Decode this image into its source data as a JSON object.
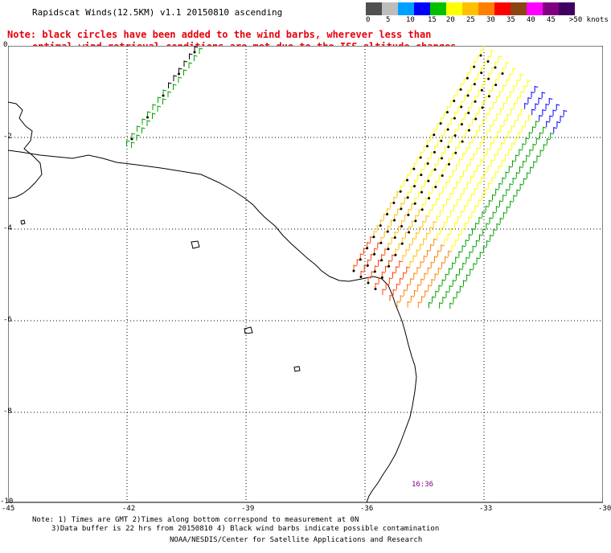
{
  "header": {
    "title": "Rapidscat Winds(12.5KM) v1.1 20150810 ascending",
    "note_line1": "Note: black circles have been added to the wind barbs, wherever less than",
    "note_line2": "optimal wind retrieval conditions are met due to the ISS altitude changes."
  },
  "legend": {
    "labels": [
      "0",
      "5",
      "10",
      "15",
      "20",
      "25",
      "30",
      "35",
      "40",
      "45",
      ">50 knots"
    ],
    "colors": [
      "#505050",
      "#bdbdbd",
      "#00a0ff",
      "#0000ff",
      "#00c000",
      "#ffff00",
      "#ffc000",
      "#ff8000",
      "#ff0000",
      "#8b4513",
      "#ff00ff",
      "#800080",
      "#400060"
    ]
  },
  "map": {
    "x_ticks": [
      "-45",
      "-42",
      "-39",
      "-36",
      "-33",
      "-30"
    ],
    "y_ticks": [
      "0",
      "-2",
      "-4",
      "-6",
      "-8",
      "-10"
    ],
    "swath_time": "16:36"
  },
  "footer": {
    "line1": "Note: 1) Times are GMT 2)Times along bottom correspond to measurement at 0N",
    "line2": "3)Data buffer is 22 hrs from 20150810 4) Black wind barbs indicate possible contamination",
    "line3": "NOAA/NESDIS/Center for Satellite Applications and Research"
  }
}
